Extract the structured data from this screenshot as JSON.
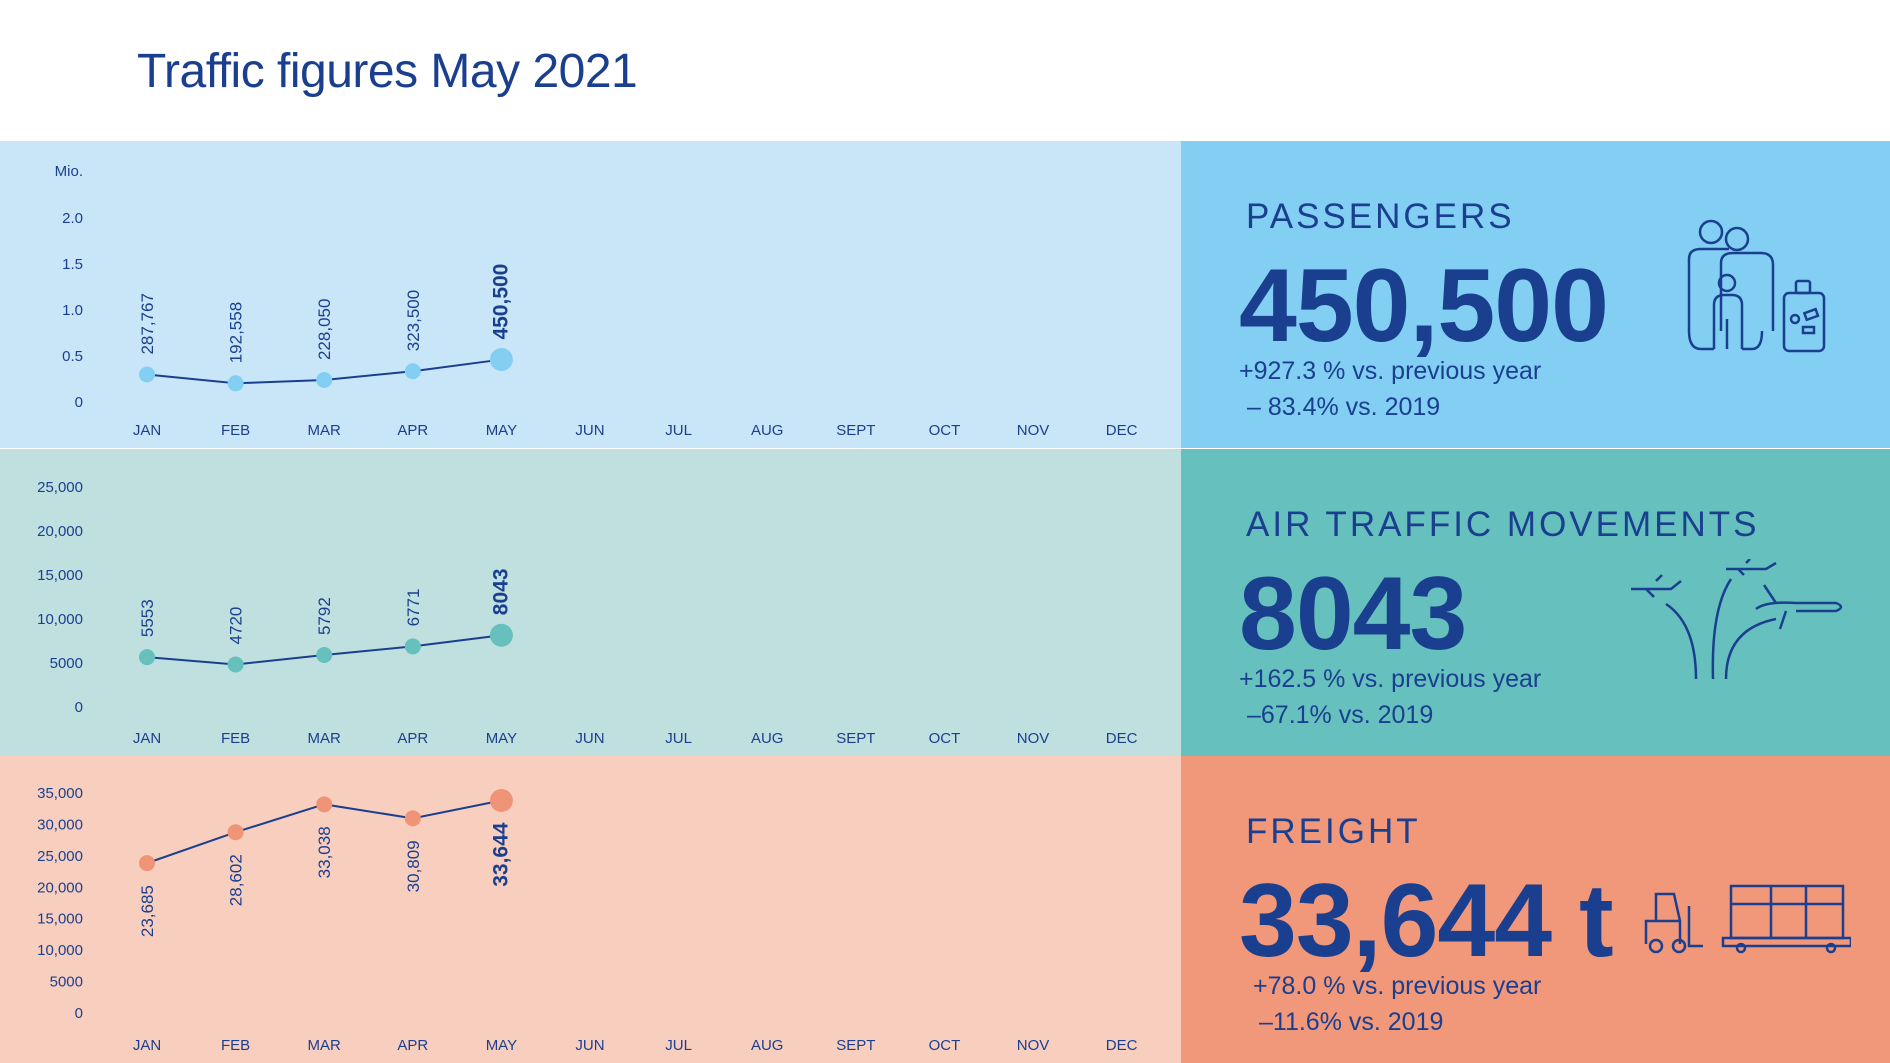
{
  "title": "Traffic figures May 2021",
  "months": [
    "JAN",
    "FEB",
    "MAR",
    "APR",
    "MAY",
    "JUN",
    "JUL",
    "AUG",
    "SEPT",
    "OCT",
    "NOV",
    "DEC"
  ],
  "colors": {
    "dark": "#1b3f8f"
  },
  "chart_data": [
    {
      "type": "line",
      "name": "passengers",
      "unit_label": "Mio.",
      "categories": [
        "JAN",
        "FEB",
        "MAR",
        "APR",
        "MAY"
      ],
      "values": [
        287767,
        192558,
        228050,
        323500,
        450500
      ],
      "value_labels": [
        "287,767",
        "192,558",
        "228,050",
        "323,500",
        "450,500"
      ],
      "ylim": [
        0,
        2000000
      ],
      "yticks": [
        0,
        500000,
        1000000,
        1500000,
        2000000
      ],
      "ytick_labels": [
        "0",
        "0.5",
        "1.0",
        "1.5",
        "2.0"
      ],
      "label_position": "above",
      "bg": "#c9e6f8",
      "point": "#82cff3"
    },
    {
      "type": "line",
      "name": "air-traffic-movements",
      "unit_label": "",
      "categories": [
        "JAN",
        "FEB",
        "MAR",
        "APR",
        "MAY"
      ],
      "values": [
        5553,
        4720,
        5792,
        6771,
        8043
      ],
      "value_labels": [
        "5553",
        "4720",
        "5792",
        "6771",
        "8043"
      ],
      "ylim": [
        0,
        25000
      ],
      "yticks": [
        0,
        5000,
        10000,
        15000,
        20000,
        25000
      ],
      "ytick_labels": [
        "0",
        "5000",
        "10,000",
        "15,000",
        "20,000",
        "25,000"
      ],
      "label_position": "above",
      "bg": "#bfe0df",
      "point": "#66c0bd"
    },
    {
      "type": "line",
      "name": "freight",
      "unit_label": "",
      "categories": [
        "JAN",
        "FEB",
        "MAR",
        "APR",
        "MAY"
      ],
      "values": [
        23685,
        28602,
        33038,
        30809,
        33644
      ],
      "value_labels": [
        "23,685",
        "28,602",
        "33,038",
        "30,809",
        "33,644"
      ],
      "ylim": [
        0,
        35000
      ],
      "yticks": [
        0,
        5000,
        10000,
        15000,
        20000,
        25000,
        30000,
        35000
      ],
      "ytick_labels": [
        "0",
        "5000",
        "10,000",
        "15,000",
        "20,000",
        "25,000",
        "30,000",
        "35,000"
      ],
      "label_position": "below",
      "bg": "#f8cfbe",
      "point": "#ef9476"
    }
  ],
  "kpis": [
    {
      "label": "PASSENGERS",
      "value": "450,500",
      "line1": "+927.3 % vs. previous year",
      "line2": "– 83.4% vs. 2019",
      "bg": "#82cff3",
      "icon": "family-luggage-icon"
    },
    {
      "label": "AIR TRAFFIC MOVEMENTS",
      "value": "8043",
      "line1": "+162.5 % vs. previous year",
      "line2": "–67.1% vs. 2019",
      "bg": "#66c0bd",
      "icon": "airplanes-icon"
    },
    {
      "label": "FREIGHT",
      "value": "33,644 t",
      "line1": "+78.0 % vs. previous year",
      "line2": "–11.6% vs. 2019",
      "bg": "#f1977a",
      "icon": "forklift-cargo-icon"
    }
  ]
}
